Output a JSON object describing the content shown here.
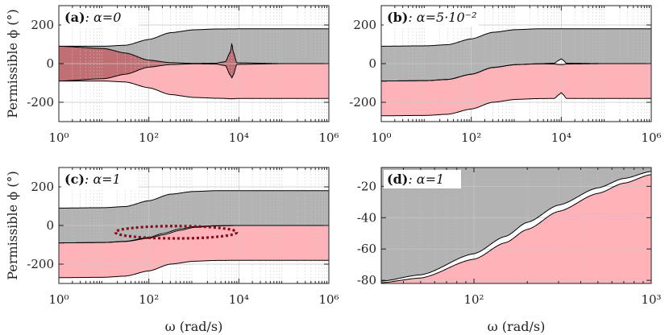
{
  "colors": {
    "gray_fill": "#b3b3b3",
    "pink_fill": "#ffb3b8",
    "dark_red_fill": "#c06f73",
    "highlight_ellipse": "#8b0a1a",
    "line": "#000000",
    "grid": "#c8c8c8"
  },
  "chart_data": [
    {
      "type": "area",
      "id": "a",
      "label_bold": "(a)",
      "label_rest": ": α=0",
      "xscale": "log",
      "xlim": [
        1,
        1000000
      ],
      "ylim": [
        -300,
        300
      ],
      "xticks": [
        1,
        100,
        10000,
        1000000
      ],
      "xtick_labels": [
        "10⁰",
        "10²",
        "10⁴",
        "10⁶"
      ],
      "yticks": [
        200,
        0,
        -200
      ],
      "ytick_labels": [
        "200",
        "0",
        "-200"
      ],
      "ylabel": "Permissible ϕ (°)",
      "xlabel": "",
      "series": [
        {
          "name": "upper bound",
          "x": [
            1,
            10,
            30,
            100,
            300,
            1000,
            3000,
            10000,
            100000,
            1000000
          ],
          "y": [
            90,
            90,
            95,
            125,
            160,
            175,
            179,
            180,
            180,
            180
          ]
        },
        {
          "name": "mid-upper",
          "x": [
            1,
            10,
            30,
            100,
            300,
            1000,
            3000,
            5000,
            6500,
            7000,
            7500,
            9000,
            100000,
            1000000
          ],
          "y": [
            90,
            78,
            55,
            18,
            5,
            1,
            2,
            10,
            60,
            105,
            60,
            4,
            0,
            0
          ]
        },
        {
          "name": "mid-lower",
          "x": [
            1,
            10,
            30,
            100,
            300,
            1000,
            3000,
            5000,
            6500,
            7000,
            7500,
            9000,
            100000,
            1000000
          ],
          "y": [
            -90,
            -78,
            -55,
            -18,
            -5,
            -1,
            -2,
            -10,
            -60,
            -75,
            -60,
            -4,
            0,
            0
          ]
        },
        {
          "name": "lower bound",
          "x": [
            1,
            10,
            30,
            100,
            300,
            1000,
            3000,
            5000,
            6500,
            7000,
            7500,
            9000,
            100000,
            1000000
          ],
          "y": [
            -90,
            -90,
            -95,
            -125,
            -160,
            -175,
            -179,
            -180,
            -182,
            -182,
            -182,
            -180,
            -180,
            -180
          ]
        }
      ]
    },
    {
      "type": "area",
      "id": "b",
      "label_bold": "(b)",
      "label_rest": ": α=5·10⁻²",
      "xscale": "log",
      "xlim": [
        1,
        1000000
      ],
      "ylim": [
        -300,
        300
      ],
      "xticks": [
        1,
        100,
        10000,
        1000000
      ],
      "xtick_labels": [
        "10⁰",
        "10²",
        "10⁴",
        "10⁶"
      ],
      "yticks": [
        200,
        0,
        -200
      ],
      "ytick_labels": [
        "200",
        "0",
        "-200"
      ],
      "ylabel": "",
      "xlabel": "",
      "series": [
        {
          "name": "upper bound",
          "x": [
            1,
            10,
            30,
            100,
            300,
            1000,
            3000,
            10000,
            100000,
            1000000
          ],
          "y": [
            90,
            92,
            98,
            128,
            162,
            176,
            180,
            180,
            180,
            180
          ]
        },
        {
          "name": "mid-upper",
          "x": [
            1,
            10,
            30,
            100,
            300,
            1000,
            3000,
            7000,
            9000,
            10000,
            11000,
            13000,
            100000,
            1000000
          ],
          "y": [
            -90,
            -88,
            -82,
            -55,
            -20,
            -5,
            -1,
            2,
            18,
            25,
            18,
            2,
            0,
            0
          ]
        },
        {
          "name": "mid-lower",
          "x": [
            1,
            10,
            30,
            100,
            300,
            1000,
            3000,
            7000,
            9000,
            10000,
            11000,
            13000,
            100000,
            1000000
          ],
          "y": [
            -90,
            -88,
            -82,
            -55,
            -20,
            -5,
            -1,
            -2,
            -5,
            -5,
            -5,
            -2,
            0,
            0
          ]
        },
        {
          "name": "lower bound",
          "x": [
            1,
            10,
            30,
            100,
            300,
            1000,
            3000,
            7000,
            9000,
            10000,
            11000,
            13000,
            100000,
            1000000
          ],
          "y": [
            -270,
            -268,
            -262,
            -235,
            -200,
            -185,
            -181,
            -180,
            -160,
            -150,
            -160,
            -180,
            -180,
            -180
          ]
        }
      ]
    },
    {
      "type": "area",
      "id": "c",
      "label_bold": "(c)",
      "label_rest": ": α=1",
      "xscale": "log",
      "xlim": [
        1,
        1000000
      ],
      "ylim": [
        -300,
        300
      ],
      "xticks": [
        1,
        100,
        10000,
        1000000
      ],
      "xtick_labels": [
        "10⁰",
        "10²",
        "10⁴",
        "10⁶"
      ],
      "yticks": [
        200,
        0,
        -200
      ],
      "ytick_labels": [
        "200",
        "0",
        "-200"
      ],
      "ylabel": "Permissible ϕ (°)",
      "xlabel": "ω (rad/s)",
      "highlight_ellipse": {
        "x_center": 400,
        "y_center": -35,
        "x_from": 18,
        "x_to": 9000,
        "y_half_height": 32
      },
      "series": [
        {
          "name": "upper bound",
          "x": [
            1,
            10,
            30,
            100,
            300,
            1000,
            3000,
            10000,
            100000,
            1000000
          ],
          "y": [
            90,
            92,
            98,
            128,
            162,
            176,
            180,
            180,
            180,
            180
          ]
        },
        {
          "name": "mid-upper",
          "x": [
            1,
            10,
            30,
            100,
            200,
            500,
            1000,
            3000,
            10000,
            100000,
            1000000
          ],
          "y": [
            -90,
            -88,
            -82,
            -62,
            -42,
            -18,
            -6,
            -1,
            0,
            0,
            0
          ]
        },
        {
          "name": "mid-lower",
          "x": [
            1,
            10,
            30,
            100,
            200,
            500,
            1000,
            3000,
            10000,
            100000,
            1000000
          ],
          "y": [
            -90,
            -88,
            -83,
            -66,
            -49,
            -25,
            -10,
            -2,
            0,
            0,
            0
          ]
        },
        {
          "name": "lower bound",
          "x": [
            1,
            10,
            30,
            100,
            300,
            1000,
            3000,
            10000,
            100000,
            1000000
          ],
          "y": [
            -270,
            -268,
            -262,
            -235,
            -200,
            -185,
            -181,
            -180,
            -180,
            -180
          ]
        }
      ]
    },
    {
      "type": "area",
      "id": "d",
      "label_bold": "(d)",
      "label_rest": ": α=1",
      "xscale": "log",
      "xlim": [
        30,
        1000
      ],
      "ylim": [
        -82,
        -8
      ],
      "xticks": [
        100,
        1000
      ],
      "xtick_labels": [
        "10²",
        "10³"
      ],
      "yticks": [
        -20,
        -40,
        -60,
        -80
      ],
      "ytick_labels": [
        "-20",
        "-40",
        "-60",
        "-80"
      ],
      "ylabel": "",
      "xlabel": "ω (rad/s)",
      "series": [
        {
          "name": "mid-upper",
          "x": [
            30,
            50,
            100,
            150,
            200,
            300,
            500,
            700,
            1000
          ],
          "y": [
            -80.5,
            -76.5,
            -63,
            -52,
            -43,
            -32,
            -21,
            -15,
            -10.5
          ]
        },
        {
          "name": "mid-lower",
          "x": [
            30,
            50,
            100,
            150,
            200,
            300,
            500,
            700,
            1000
          ],
          "y": [
            -81.5,
            -78.5,
            -66.5,
            -56,
            -47.5,
            -36,
            -24.5,
            -18,
            -12.5
          ]
        }
      ]
    }
  ]
}
